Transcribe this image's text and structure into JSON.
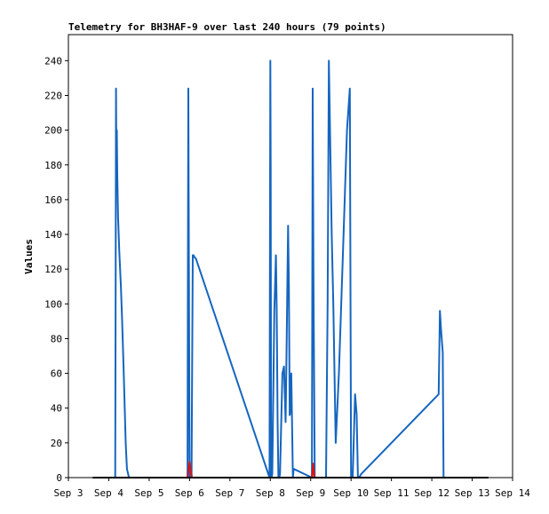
{
  "chart_data": {
    "type": "line",
    "title": "Telemetry for BH3HAF-9 over last 240 hours (79 points)",
    "xlabel": "",
    "ylabel": "Values",
    "x_ticks": [
      "Sep 3",
      "Sep 4",
      "Sep 5",
      "Sep 6",
      "Sep 7",
      "Sep 8",
      "Sep 9",
      "Sep 10",
      "Sep 11",
      "Sep 12",
      "Sep 13",
      "Sep 14"
    ],
    "xlim": [
      3.0,
      14.0
    ],
    "ylim": [
      0,
      255
    ],
    "y_ticks": [
      0,
      20,
      40,
      60,
      80,
      100,
      120,
      140,
      160,
      180,
      200,
      220,
      240
    ],
    "grid": false,
    "legend": "none",
    "colors": {
      "series1": "#1565c0",
      "series2": "#dd1111",
      "series3": "#000000",
      "frame": "#000000"
    },
    "series": [
      {
        "x": [
          4.16,
          4.17,
          4.18,
          4.19,
          4.2,
          4.21,
          4.23,
          4.26,
          4.3,
          4.33,
          4.37,
          4.42,
          4.45,
          4.48,
          4.5,
          5.95,
          5.96,
          5.97,
          6.0,
          6.02,
          6.05,
          6.08,
          6.1,
          6.12,
          6.16,
          7.98,
          8.0,
          8.01,
          8.02,
          8.03,
          8.05,
          8.1,
          8.14,
          8.16,
          8.18,
          8.2,
          8.22,
          8.24,
          8.3,
          8.34,
          8.36,
          8.38,
          8.4,
          8.42,
          8.44,
          8.46,
          8.48,
          8.5,
          8.52,
          8.54,
          8.56,
          8.58,
          9.03,
          9.05,
          9.07,
          9.1,
          9.38,
          9.42,
          9.45,
          9.48,
          9.52,
          9.56,
          9.62,
          9.7,
          9.8,
          9.9,
          9.97,
          10.0,
          10.04,
          10.1,
          10.14,
          10.17,
          10.2,
          10.25,
          12.17,
          12.2,
          12.23,
          12.27,
          12.29
        ],
        "y": [
          0,
          112,
          224,
          170,
          200,
          175,
          150,
          130,
          110,
          90,
          60,
          20,
          5,
          2,
          0,
          0,
          112,
          224,
          0,
          5,
          0,
          128,
          128,
          127,
          126,
          0,
          240,
          180,
          0,
          0,
          2,
          96,
          128,
          96,
          32,
          0,
          0,
          2,
          60,
          64,
          48,
          32,
          70,
          108,
          145,
          110,
          36,
          38,
          60,
          30,
          0,
          5,
          0,
          224,
          112,
          0,
          0,
          100,
          240,
          200,
          140,
          100,
          20,
          60,
          130,
          200,
          224,
          0,
          0,
          48,
          36,
          0,
          0,
          2,
          48,
          96,
          85,
          72,
          0
        ]
      },
      {
        "x": [
          5.95,
          6.0,
          6.03,
          6.06,
          9.03,
          9.06,
          9.09
        ],
        "y": [
          0,
          9,
          4,
          0,
          0,
          8,
          0
        ]
      },
      {
        "x": [
          3.6,
          13.4
        ],
        "y": [
          0,
          0
        ]
      }
    ]
  }
}
